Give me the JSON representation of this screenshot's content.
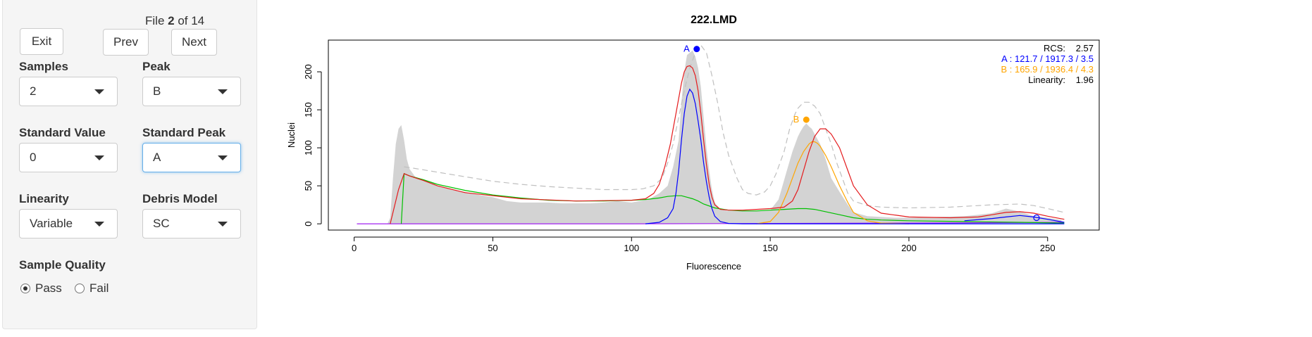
{
  "sidebar": {
    "file_prefix": "File ",
    "file_current": "2",
    "file_suffix": " of 14",
    "exit_label": "Exit",
    "prev_label": "Prev",
    "next_label": "Next",
    "samples": {
      "label": "Samples",
      "value": "2"
    },
    "peak": {
      "label": "Peak",
      "value": "B"
    },
    "standard_value": {
      "label": "Standard Value",
      "value": "0"
    },
    "standard_peak": {
      "label": "Standard Peak",
      "value": "A"
    },
    "linearity": {
      "label": "Linearity",
      "value": "Variable"
    },
    "debris_model": {
      "label": "Debris Model",
      "value": "SC"
    },
    "sample_quality": {
      "label": "Sample Quality",
      "options": [
        "Pass",
        "Fail"
      ],
      "selected": "Pass"
    }
  },
  "colors": {
    "histogram": "#d3d3d3",
    "model": "#e41a1c",
    "peak_a": "#0000ff",
    "peak_b": "#ffa500",
    "debris": "#00c000",
    "aggregate": "#a020f0",
    "envelope": "#bfbfbf"
  },
  "chart_data": {
    "type": "area",
    "title": "222.LMD",
    "xlabel": "Fluorescence",
    "ylabel": "Nuclei",
    "xlim": [
      0,
      256
    ],
    "ylim": [
      0,
      230
    ],
    "xticks": [
      0,
      50,
      100,
      150,
      200,
      250
    ],
    "yticks": [
      0,
      50,
      100,
      150,
      200
    ],
    "grid": false,
    "legend": {
      "position": "top-right",
      "rcs_label": "RCS:",
      "rcs_value": "2.57",
      "peak_a_text": "A :  121.7 / 1917.3 / 3.5",
      "peak_b_text": "B :  165.9 / 1936.4 / 4.3",
      "linearity_label": "Linearity:",
      "linearity_value": "1.96"
    },
    "peak_markers": [
      {
        "label": "A",
        "x": 123.5,
        "y": 230
      },
      {
        "label": "B",
        "x": 163,
        "y": 137
      }
    ],
    "histogram": {
      "x": [
        10,
        12,
        13,
        14,
        15,
        16,
        17,
        18,
        19,
        20,
        22,
        25,
        28,
        30,
        35,
        40,
        45,
        50,
        55,
        60,
        65,
        70,
        75,
        80,
        85,
        90,
        95,
        100,
        103,
        106,
        110,
        113,
        115,
        117,
        118,
        119,
        120,
        121,
        122,
        123,
        124,
        125,
        126,
        127,
        128,
        129,
        130,
        132,
        135,
        140,
        145,
        150,
        153,
        156,
        158,
        160,
        161,
        162,
        163,
        164,
        165,
        166,
        168,
        170,
        172,
        175,
        178,
        180,
        185,
        190,
        195,
        200,
        210,
        220,
        225,
        230,
        235,
        240,
        245,
        250,
        255
      ],
      "y": [
        0,
        0,
        8,
        60,
        105,
        125,
        130,
        110,
        85,
        72,
        62,
        58,
        55,
        50,
        45,
        42,
        38,
        35,
        30,
        28,
        28,
        28,
        27,
        27,
        27,
        28,
        30,
        28,
        30,
        32,
        40,
        50,
        75,
        110,
        160,
        200,
        222,
        225,
        228,
        220,
        205,
        180,
        140,
        100,
        70,
        45,
        28,
        19,
        17,
        17,
        17,
        18,
        32,
        70,
        95,
        115,
        122,
        128,
        132,
        128,
        125,
        118,
        105,
        85,
        60,
        42,
        25,
        15,
        10,
        9,
        8,
        8,
        9,
        10,
        12,
        14,
        20,
        16,
        10,
        8,
        5
      ]
    },
    "series": [
      {
        "name": "model",
        "x": [
          13,
          16,
          18,
          20,
          25,
          30,
          40,
          60,
          80,
          100,
          105,
          108,
          110,
          112,
          114,
          115,
          116,
          117,
          118,
          119,
          120,
          121,
          122,
          123,
          124,
          125,
          126,
          127,
          128,
          129,
          130,
          132,
          135,
          140,
          145,
          150,
          155,
          158,
          160,
          162,
          164,
          166,
          168,
          170,
          172,
          175,
          178,
          180,
          185,
          190,
          200,
          215,
          225,
          230,
          235,
          240,
          245,
          250,
          256
        ],
        "y": [
          0,
          45,
          66,
          63,
          57,
          50,
          41,
          33,
          30,
          31,
          33,
          40,
          52,
          75,
          105,
          125,
          145,
          165,
          185,
          200,
          207,
          208,
          205,
          195,
          175,
          145,
          110,
          78,
          52,
          35,
          25,
          19,
          18,
          18,
          19,
          20,
          22,
          30,
          45,
          70,
          95,
          115,
          125,
          125,
          118,
          100,
          70,
          50,
          25,
          14,
          9,
          8,
          9,
          12,
          15,
          16,
          14,
          10,
          6
        ]
      },
      {
        "name": "peak A",
        "x": [
          105,
          110,
          113,
          115,
          116,
          117,
          118,
          119,
          120,
          121,
          122,
          123,
          124,
          125,
          126,
          127,
          128,
          129,
          130,
          132,
          135,
          140,
          150,
          200,
          230,
          256
        ],
        "y": [
          0,
          2,
          8,
          20,
          40,
          70,
          110,
          145,
          168,
          177,
          172,
          158,
          135,
          110,
          80,
          55,
          35,
          20,
          10,
          3,
          0.5,
          0,
          0,
          0,
          0,
          0
        ],
        "extra_x": [
          220,
          230,
          235,
          240,
          245,
          250,
          256
        ],
        "extra_y": [
          4,
          7,
          9,
          11,
          9,
          6,
          2
        ]
      },
      {
        "name": "peak B",
        "x": [
          145,
          150,
          153,
          156,
          158,
          160,
          162,
          164,
          165,
          166,
          167,
          168,
          170,
          172,
          175,
          178,
          180,
          185,
          190,
          200
        ],
        "y": [
          0,
          3,
          15,
          40,
          60,
          80,
          95,
          105,
          108,
          108,
          106,
          102,
          90,
          75,
          50,
          28,
          15,
          4,
          1,
          0
        ]
      },
      {
        "name": "debris",
        "x": [
          17,
          18,
          20,
          25,
          30,
          40,
          50,
          60,
          70,
          80,
          90,
          100,
          105,
          110,
          113,
          116,
          118,
          120,
          122,
          124,
          126,
          130,
          135,
          140,
          145,
          150,
          155,
          160,
          163,
          166,
          170,
          175,
          180,
          185,
          190,
          200,
          220,
          240,
          256
        ],
        "y": [
          0,
          66,
          63,
          58,
          52,
          44,
          38,
          34,
          31,
          30,
          30,
          31,
          32,
          34,
          36,
          37,
          37,
          35,
          33,
          30,
          26,
          21,
          18,
          17,
          17,
          18,
          19,
          20,
          20,
          19,
          16,
          12,
          8,
          6,
          5,
          4,
          3,
          2,
          1
        ]
      },
      {
        "name": "aggregates",
        "x": [
          1,
          50,
          100,
          150,
          200,
          256
        ],
        "y": [
          0,
          0,
          0,
          0.5,
          1,
          2
        ]
      },
      {
        "name": "envelope",
        "x": [
          18,
          20,
          25,
          30,
          40,
          50,
          60,
          70,
          80,
          90,
          100,
          104,
          108,
          111,
          113,
          115,
          117,
          119,
          121,
          123,
          125,
          127,
          129,
          131,
          133,
          135,
          138,
          140,
          142,
          145,
          148,
          150,
          152,
          155,
          157,
          159,
          160,
          162,
          164,
          166,
          168,
          170,
          172,
          174,
          176,
          178,
          180,
          185,
          190,
          200,
          215,
          230,
          240,
          245,
          250,
          256
        ],
        "y": [
          75,
          74,
          71,
          68,
          62,
          56,
          52,
          49,
          47,
          45,
          45,
          46,
          50,
          60,
          80,
          105,
          140,
          175,
          205,
          225,
          235,
          225,
          195,
          160,
          120,
          90,
          60,
          45,
          40,
          38,
          42,
          50,
          65,
          95,
          125,
          145,
          152,
          160,
          160,
          155,
          145,
          125,
          105,
          80,
          60,
          40,
          30,
          24,
          22,
          21,
          22,
          25,
          26,
          24,
          20,
          15
        ]
      }
    ]
  }
}
